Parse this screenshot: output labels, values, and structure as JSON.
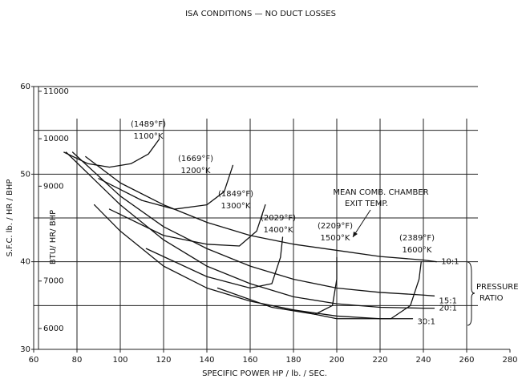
{
  "chart_data": {
    "type": "line",
    "title": "ISA CONDITIONS — NO DUCT LOSSES",
    "x_label": "SPECIFIC POWER   HP / lb. / SEC.",
    "y_label": "S.F.C.   lb. / HR / BHP",
    "y2_label": "BTU/ HR/ BHP",
    "xlim": [
      60,
      280
    ],
    "xticks": [
      60,
      80,
      100,
      120,
      140,
      160,
      180,
      200,
      220,
      240,
      260,
      280
    ],
    "ylim": [
      30,
      60
    ],
    "yticks": [
      30,
      40,
      50,
      60
    ],
    "yminor": [
      35,
      45,
      55
    ],
    "y2lim": [
      5560,
      11100
    ],
    "y2ticks": [
      6000,
      7000,
      9000,
      10000,
      11000
    ],
    "grid": true,
    "color": "#111111",
    "series": [
      {
        "name": "10:1",
        "x": [
          84,
          100,
          120,
          140,
          160,
          180,
          200,
          220,
          240,
          246
        ],
        "values": [
          52,
          49,
          46.5,
          44.5,
          43,
          42,
          41.3,
          40.6,
          40.2,
          40
        ]
      },
      {
        "name": "15:1",
        "x": [
          78,
          100,
          120,
          140,
          160,
          180,
          200,
          220,
          240,
          245
        ],
        "values": [
          52.5,
          47.5,
          44,
          41.5,
          39.5,
          38,
          37,
          36.5,
          36.2,
          36.1
        ]
      },
      {
        "name": "20:1",
        "x": [
          75,
          100,
          120,
          140,
          160,
          180,
          200,
          220,
          240,
          245
        ],
        "values": [
          52.5,
          46.5,
          42.5,
          39.5,
          37.5,
          36,
          35.2,
          34.8,
          34.7,
          34.7
        ]
      },
      {
        "name": "30:1",
        "x": [
          88,
          100,
          120,
          140,
          160,
          180,
          200,
          220,
          235
        ],
        "values": [
          46.5,
          43.5,
          39.5,
          37,
          35.5,
          34.5,
          33.8,
          33.5,
          33.5
        ]
      }
    ],
    "temperature_lines": [
      {
        "label_f": "(1489°F)",
        "label_k": "1100°K",
        "x": [
          74,
          85,
          95,
          105,
          113,
          118
        ],
        "values": [
          52.5,
          51.2,
          50.8,
          51.2,
          52.3,
          54
        ]
      },
      {
        "label_f": "(1669°F)",
        "label_k": "1200°K",
        "x": [
          90,
          110,
          125,
          140,
          148,
          152
        ],
        "values": [
          49.5,
          47,
          46,
          46.5,
          48,
          51
        ]
      },
      {
        "label_f": "(1849°F)",
        "label_k": "1300°K",
        "x": [
          95,
          120,
          140,
          155,
          163,
          167
        ],
        "values": [
          46,
          43,
          42,
          41.8,
          43.5,
          46.5
        ]
      },
      {
        "label_f": "(2029°F)",
        "label_k": "1400°K",
        "x": [
          112,
          140,
          160,
          170,
          174,
          175
        ],
        "values": [
          41.5,
          38.3,
          37,
          37.5,
          40.5,
          42.8
        ]
      },
      {
        "label_f": "(2209°F)",
        "label_k": "1500°K",
        "x": [
          145,
          170,
          190,
          198,
          200,
          200
        ],
        "values": [
          37,
          34.8,
          34,
          35,
          38,
          40.5
        ]
      },
      {
        "label_f": "(2389°F)",
        "label_k": "1600°K",
        "x": [
          170,
          200,
          225,
          234,
          238,
          239
        ],
        "values": [
          35,
          33.5,
          33.5,
          35,
          38,
          40
        ]
      }
    ],
    "annotation": [
      "MEAN COMB. CHAMBER",
      "EXIT TEMP."
    ],
    "group_label": [
      "PRESSURE",
      "RATIO"
    ]
  }
}
